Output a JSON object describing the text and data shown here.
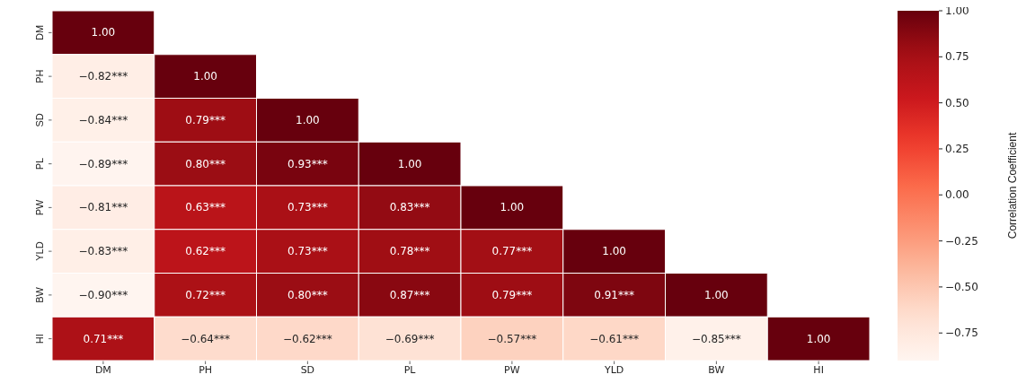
{
  "chart_data": {
    "type": "heatmap",
    "clabel": "Correlation Coefficient",
    "categories": [
      "DM",
      "PH",
      "SD",
      "PL",
      "PW",
      "YLD",
      "BW",
      "HI"
    ],
    "y_categories": [
      "DM",
      "PH",
      "SD",
      "PL",
      "PW",
      "YLD",
      "BW",
      "HI"
    ],
    "cells": [
      [
        1.0,
        null,
        null,
        null,
        null,
        null,
        null,
        null
      ],
      [
        -0.82,
        1.0,
        null,
        null,
        null,
        null,
        null,
        null
      ],
      [
        -0.84,
        0.79,
        1.0,
        null,
        null,
        null,
        null,
        null
      ],
      [
        -0.89,
        0.8,
        0.93,
        1.0,
        null,
        null,
        null,
        null
      ],
      [
        -0.81,
        0.63,
        0.73,
        0.83,
        1.0,
        null,
        null,
        null
      ],
      [
        -0.83,
        0.62,
        0.73,
        0.78,
        0.77,
        1.0,
        null,
        null
      ],
      [
        -0.9,
        0.72,
        0.8,
        0.87,
        0.79,
        0.91,
        1.0,
        null
      ],
      [
        0.71,
        -0.64,
        -0.62,
        -0.69,
        -0.57,
        -0.61,
        -0.85,
        1.0
      ]
    ],
    "cell_labels": [
      [
        "1.00",
        null,
        null,
        null,
        null,
        null,
        null,
        null
      ],
      [
        "−0.82***",
        "1.00",
        null,
        null,
        null,
        null,
        null,
        null
      ],
      [
        "−0.84***",
        "0.79***",
        "1.00",
        null,
        null,
        null,
        null,
        null
      ],
      [
        "−0.89***",
        "0.80***",
        "0.93***",
        "1.00",
        null,
        null,
        null,
        null
      ],
      [
        "−0.81***",
        "0.63***",
        "0.73***",
        "0.83***",
        "1.00",
        null,
        null,
        null
      ],
      [
        "−0.83***",
        "0.62***",
        "0.73***",
        "0.78***",
        "0.77***",
        "1.00",
        null,
        null
      ],
      [
        "−0.90***",
        "0.72***",
        "0.80***",
        "0.87***",
        "0.79***",
        "0.91***",
        "1.00",
        null
      ],
      [
        "0.71***",
        "−0.64***",
        "−0.62***",
        "−0.69***",
        "−0.57***",
        "−0.61***",
        "−0.85***",
        "1.00"
      ]
    ],
    "clim": [
      -0.9,
      1.0
    ],
    "cticks": [
      {
        "value": -0.75,
        "label": "−0.75"
      },
      {
        "value": -0.5,
        "label": "−0.50"
      },
      {
        "value": -0.25,
        "label": "−0.25"
      },
      {
        "value": 0,
        "label": "0.00"
      },
      {
        "value": 0.25,
        "label": "0.25"
      },
      {
        "value": 0.5,
        "label": "0.50"
      },
      {
        "value": 0.75,
        "label": "0.75"
      },
      {
        "value": 1,
        "label": "1.00"
      }
    ]
  }
}
